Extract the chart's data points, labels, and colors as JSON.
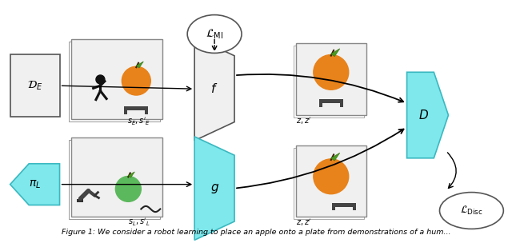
{
  "figure_width": 6.4,
  "figure_height": 3.04,
  "dpi": 100,
  "background_color": "#ffffff",
  "cyan_face": "#7ee8ec",
  "cyan_edge": "#3ab8c0",
  "gray_face": "#f0f0f0",
  "gray_edge": "#888888",
  "dark_edge": "#555555",
  "orange_apple": "#e8821a",
  "green_apple": "#5cb85c",
  "black": "#111111",
  "caption": "Figure 1: We consider a robot learning to place an apple onto a plate from demonstrations of a hum..."
}
